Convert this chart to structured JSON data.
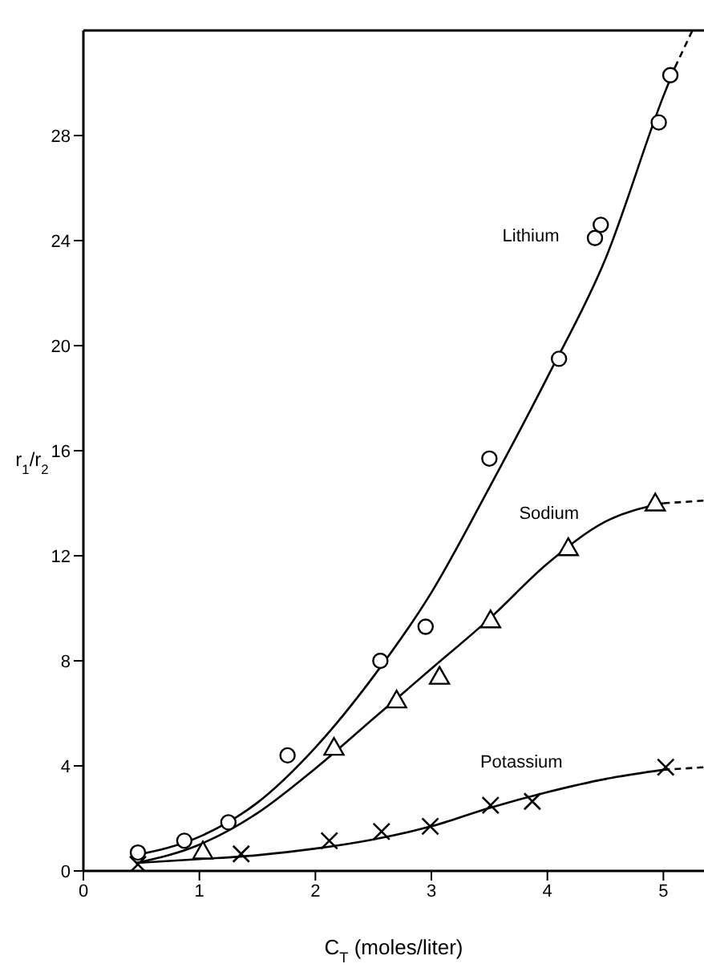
{
  "chart_data": {
    "type": "scatter",
    "xlabel": "C$_{T}$ (moles/liter)",
    "ylabel": "r$_{1}$/r$_{2}$",
    "xlim": [
      0,
      5.35
    ],
    "ylim": [
      0,
      32
    ],
    "xticks": [
      0,
      1,
      2,
      3,
      4,
      5
    ],
    "yticks": [
      0,
      4,
      8,
      12,
      16,
      20,
      24,
      28
    ],
    "series": [
      {
        "name": "Lithium",
        "marker": "circle",
        "color": "#000000",
        "x": [
          0.47,
          0.87,
          1.25,
          1.76,
          2.56,
          2.95,
          3.5,
          4.1,
          4.41,
          4.46,
          4.96,
          5.06
        ],
        "values": [
          0.7,
          1.15,
          1.85,
          4.4,
          8.0,
          9.3,
          15.7,
          19.5,
          24.1,
          24.6,
          28.5,
          30.3
        ]
      },
      {
        "name": "Sodium",
        "marker": "triangle",
        "color": "#000000",
        "x": [
          1.03,
          2.16,
          2.7,
          3.07,
          3.51,
          4.18,
          4.93
        ],
        "values": [
          0.75,
          4.7,
          6.5,
          7.4,
          9.55,
          12.3,
          14.0
        ]
      },
      {
        "name": "Potassium",
        "marker": "cross",
        "color": "#000000",
        "x": [
          0.47,
          1.36,
          2.12,
          2.57,
          2.99,
          3.51,
          3.87,
          5.02
        ],
        "values": [
          0.25,
          0.65,
          1.15,
          1.5,
          1.7,
          2.5,
          2.65,
          3.95
        ]
      },
      {
        "type": "line",
        "marker": "none",
        "line_style": "solid",
        "color": "#000000",
        "x": [
          0.45,
          1,
          1.5,
          2,
          2.5,
          3,
          3.5,
          4,
          4.5,
          5,
          5.1
        ],
        "values": [
          0.6,
          1.3,
          2.6,
          4.7,
          7.4,
          10.6,
          14.6,
          18.8,
          23.3,
          29.5,
          30.6
        ]
      },
      {
        "type": "line",
        "marker": "none",
        "line_style": "dashed",
        "color": "#000000",
        "x": [
          5.1,
          5.25
        ],
        "values": [
          30.6,
          32
        ]
      },
      {
        "type": "line",
        "marker": "none",
        "line_style": "solid",
        "color": "#000000",
        "x": [
          0.45,
          1,
          1.5,
          2,
          2.5,
          3,
          3.5,
          4,
          4.5,
          5
        ],
        "values": [
          0.3,
          1.0,
          2.2,
          3.9,
          5.8,
          7.7,
          9.6,
          11.7,
          13.3,
          14.0
        ]
      },
      {
        "type": "line",
        "marker": "none",
        "line_style": "dashed",
        "color": "#000000",
        "x": [
          5,
          5.35
        ],
        "values": [
          14.0,
          14.1
        ]
      },
      {
        "type": "line",
        "marker": "none",
        "line_style": "solid",
        "color": "#000000",
        "x": [
          0.45,
          1,
          1.5,
          2,
          2.5,
          3,
          3.5,
          4,
          4.5,
          5
        ],
        "values": [
          0.3,
          0.45,
          0.6,
          0.85,
          1.2,
          1.7,
          2.4,
          3.0,
          3.5,
          3.85
        ]
      },
      {
        "type": "line",
        "marker": "none",
        "line_style": "dashed",
        "color": "#000000",
        "x": [
          5,
          5.35
        ],
        "values": [
          3.85,
          3.95
        ]
      }
    ]
  }
}
